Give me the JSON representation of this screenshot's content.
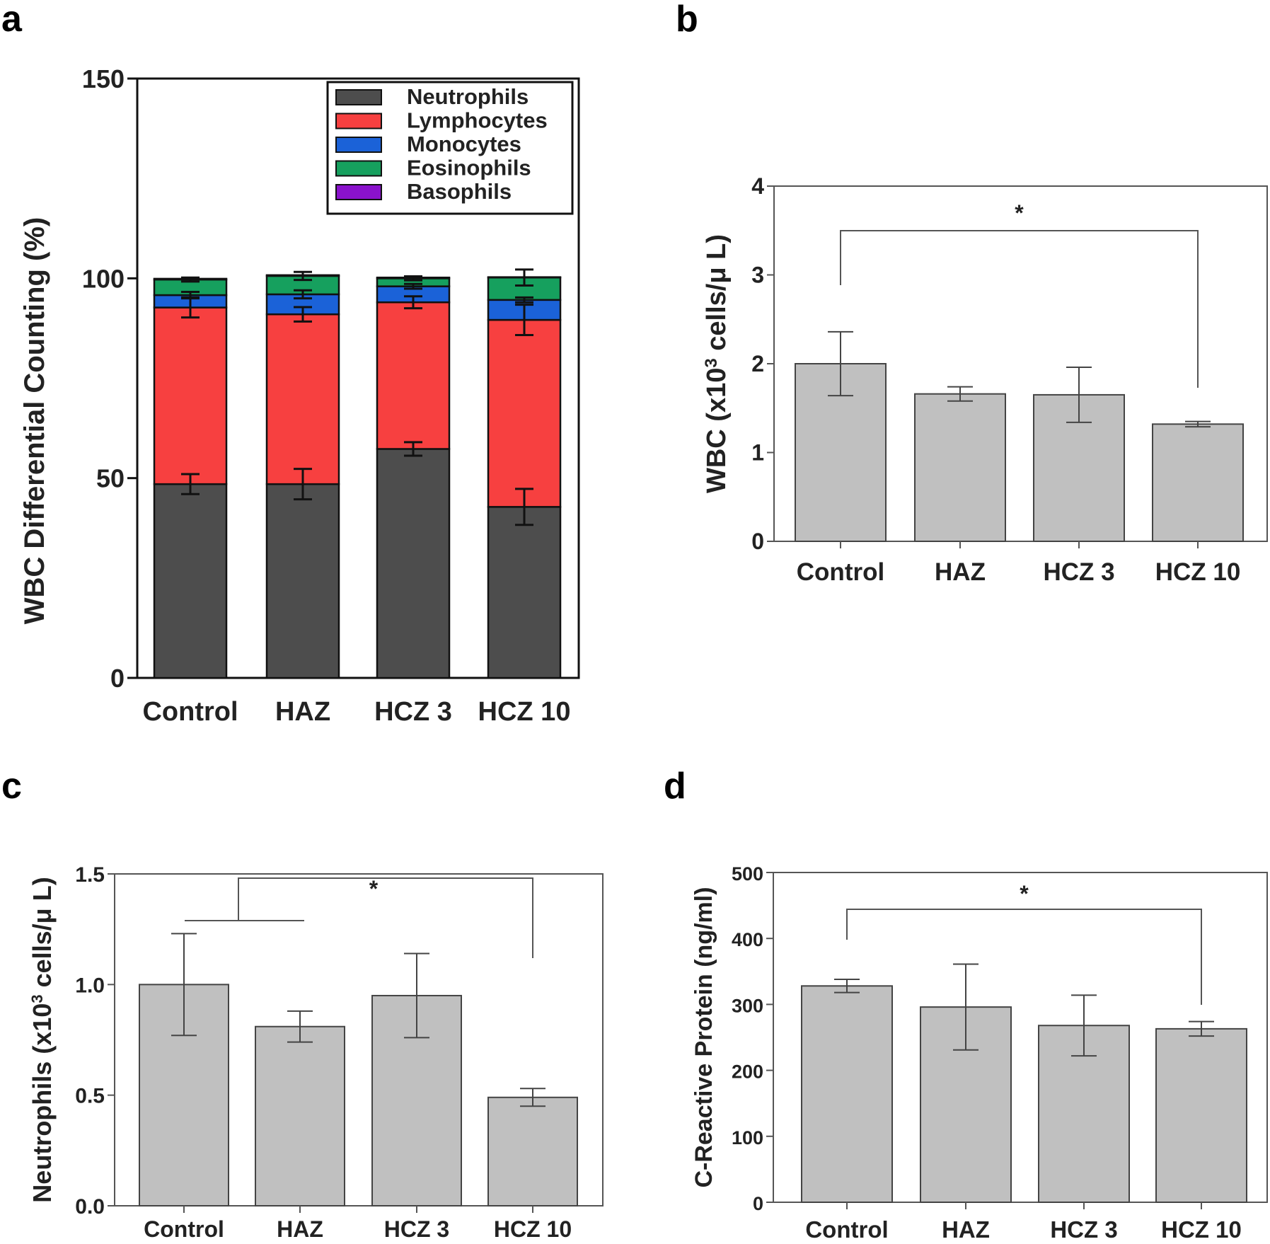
{
  "panels": {
    "a": {
      "letter": "a",
      "chart_data": {
        "type": "bar",
        "stacked": true,
        "ylabel": "WBC Differential Counting (%)",
        "ylim": [
          0,
          150
        ],
        "yticks": [
          "0",
          "50",
          "100",
          "150"
        ],
        "categories": [
          "Control",
          "HAZ",
          "HCZ 3",
          "HCZ 10"
        ],
        "series": [
          {
            "name": "Neutrophils",
            "color": "#4d4d4d",
            "values": [
              48.5,
              48.5,
              57.3,
              42.8
            ],
            "errors": [
              2.5,
              3.8,
              1.7,
              4.5
            ]
          },
          {
            "name": "Lymphocytes",
            "color": "#f74040",
            "values": [
              44.2,
              42.5,
              36.7,
              46.8
            ],
            "errors": [
              2.5,
              1.8,
              1.5,
              3.8
            ]
          },
          {
            "name": "Monocytes",
            "color": "#1b62d8",
            "values": [
              3.1,
              5.0,
              4.0,
              5.0
            ],
            "errors": [
              0.8,
              1.0,
              0.6,
              0.6
            ]
          },
          {
            "name": "Eosinophils",
            "color": "#16a05e",
            "values": [
              3.9,
              4.6,
              2.0,
              5.6
            ],
            "errors": [
              0.5,
              1.0,
              0.5,
              2.0
            ]
          },
          {
            "name": "Basophils",
            "color": "#8a12cc",
            "values": [
              0.2,
              0.2,
              0.2,
              0.1
            ],
            "errors": [
              0,
              0,
              0,
              0
            ]
          }
        ],
        "legend_position": "top-right"
      }
    },
    "b": {
      "letter": "b",
      "chart_data": {
        "type": "bar",
        "ylabel_pre": "WBC (x10",
        "ylabel_sup": "3",
        "ylabel_post": " cells/μ L)",
        "ylim": [
          0,
          4
        ],
        "yticks": [
          "0",
          "1",
          "2",
          "3",
          "4"
        ],
        "categories": [
          "Control",
          "HAZ",
          "HCZ 3",
          "HCZ 10"
        ],
        "values": [
          2.0,
          1.66,
          1.65,
          1.32
        ],
        "errors": [
          0.36,
          0.08,
          0.31,
          0.03
        ],
        "bar_color": "#c0c0c0",
        "significance": {
          "label": "*",
          "from": 0,
          "to": 3
        }
      }
    },
    "c": {
      "letter": "c",
      "chart_data": {
        "type": "bar",
        "ylabel_pre": "Neutrophils (x10",
        "ylabel_sup": "3",
        "ylabel_post": " cells/μ L)",
        "ylim": [
          0,
          1.5
        ],
        "yticks": [
          "0.0",
          "0.5",
          "1.0",
          "1.5"
        ],
        "categories": [
          "Control",
          "HAZ",
          "HCZ 3",
          "HCZ 10"
        ],
        "values": [
          1.0,
          0.81,
          0.95,
          0.49
        ],
        "errors": [
          0.23,
          0.07,
          0.19,
          0.04
        ],
        "bar_color": "#c0c0c0",
        "significance": {
          "label": "*",
          "from_group": [
            0,
            1
          ],
          "to": 3
        }
      }
    },
    "d": {
      "letter": "d",
      "chart_data": {
        "type": "bar",
        "ylabel": "C-Reactive Protein (ng/ml)",
        "ylim": [
          0,
          500
        ],
        "yticks": [
          "0",
          "100",
          "200",
          "300",
          "400",
          "500"
        ],
        "categories": [
          "Control",
          "HAZ",
          "HCZ 3",
          "HCZ 10"
        ],
        "values": [
          328,
          296,
          268,
          263
        ],
        "errors": [
          10,
          65,
          46,
          11
        ],
        "bar_color": "#c0c0c0",
        "significance": {
          "label": "*",
          "from": 0,
          "to": 3
        }
      }
    }
  }
}
